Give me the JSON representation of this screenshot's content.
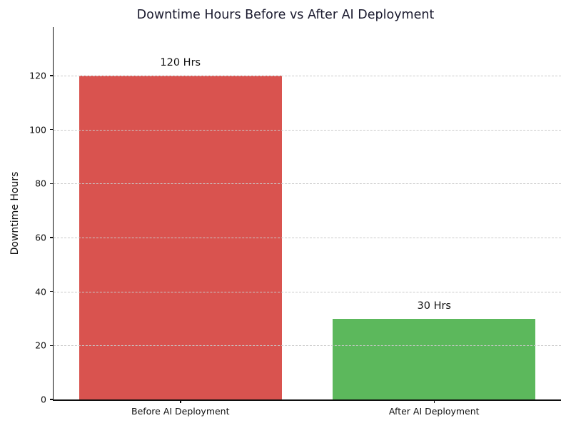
{
  "chart_data": {
    "type": "bar",
    "title": "Downtime Hours Before vs After AI Deployment",
    "xlabel": "",
    "ylabel": "Downtime Hours",
    "categories": [
      "Before AI Deployment",
      "After AI Deployment"
    ],
    "values": [
      120,
      30
    ],
    "bar_labels": [
      "120 Hrs",
      "30 Hrs"
    ],
    "bar_colors": [
      "#d9534f",
      "#5cb85c"
    ],
    "ylim": [
      0,
      138
    ],
    "yticks": [
      0,
      20,
      40,
      60,
      80,
      100,
      120
    ],
    "grid": "horizontal-dashed",
    "grid_color": "#c9c9c9",
    "legend": "none"
  },
  "figure": {
    "background": "#ffffff",
    "title_color": "#1a1a2e",
    "axis_color": "#0f0f0f"
  }
}
